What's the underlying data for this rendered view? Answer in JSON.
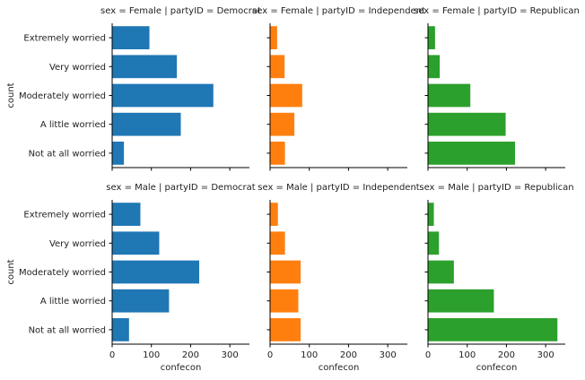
{
  "chart_data": {
    "type": "bar",
    "orientation": "horizontal",
    "categories": [
      "Extremely worried",
      "Very worried",
      "Moderately worried",
      "A little worried",
      "Not at all worried"
    ],
    "ylabel": "count",
    "xlabel": "confecon",
    "xlim": [
      0,
      350
    ],
    "xticks": [
      0,
      100,
      200,
      300
    ],
    "grid": false,
    "legend": "none",
    "panels": [
      {
        "title": "sex = Female | partyID = Democrat",
        "color": "#1f77b4",
        "values": [
          95,
          165,
          258,
          175,
          30
        ]
      },
      {
        "title": "sex = Female | partyID = Independent",
        "color": "#ff7f0e",
        "values": [
          18,
          37,
          82,
          62,
          38
        ]
      },
      {
        "title": "sex = Female | partyID = Republican",
        "color": "#2ca02c",
        "values": [
          18,
          30,
          108,
          198,
          222
        ]
      },
      {
        "title": "sex = Male | partyID = Democrat",
        "color": "#1f77b4",
        "values": [
          72,
          120,
          222,
          145,
          43
        ]
      },
      {
        "title": "sex = Male | partyID = Independent",
        "color": "#ff7f0e",
        "values": [
          20,
          38,
          78,
          72,
          78
        ]
      },
      {
        "title": "sex = Male | partyID = Republican",
        "color": "#2ca02c",
        "values": [
          15,
          28,
          66,
          168,
          330
        ]
      }
    ]
  }
}
